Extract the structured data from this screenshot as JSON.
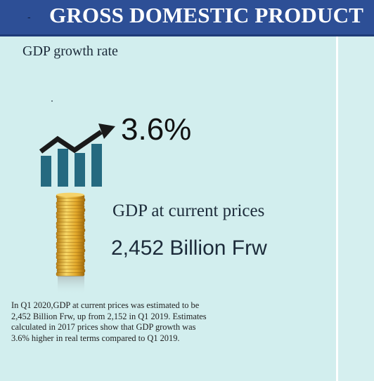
{
  "header": {
    "bullet": "-",
    "title": "GROSS DOMESTIC PRODUCT"
  },
  "growth": {
    "label": "GDP growth rate",
    "value": "3.6%",
    "icon": "growth-chart-icon"
  },
  "current_prices": {
    "label": "GDP at current prices",
    "value": "2,452 Billion Frw",
    "icon": "coin-stack-icon"
  },
  "description": {
    "lines": [
      "In Q1 2020,GDP at current prices was estimated to be",
      "2,452 Billion  Frw, up from  2,152 in Q1 2019. Estimates",
      "calculated in 2017 prices show that GDP growth was",
      "3.6% higher in real terms compared to Q1 2019."
    ]
  },
  "colors": {
    "banner": "#2d4f96",
    "background": "#d2eeee",
    "bars": "#256a80",
    "arrow": "#1a1a1a",
    "coins": "#e6b23a"
  }
}
